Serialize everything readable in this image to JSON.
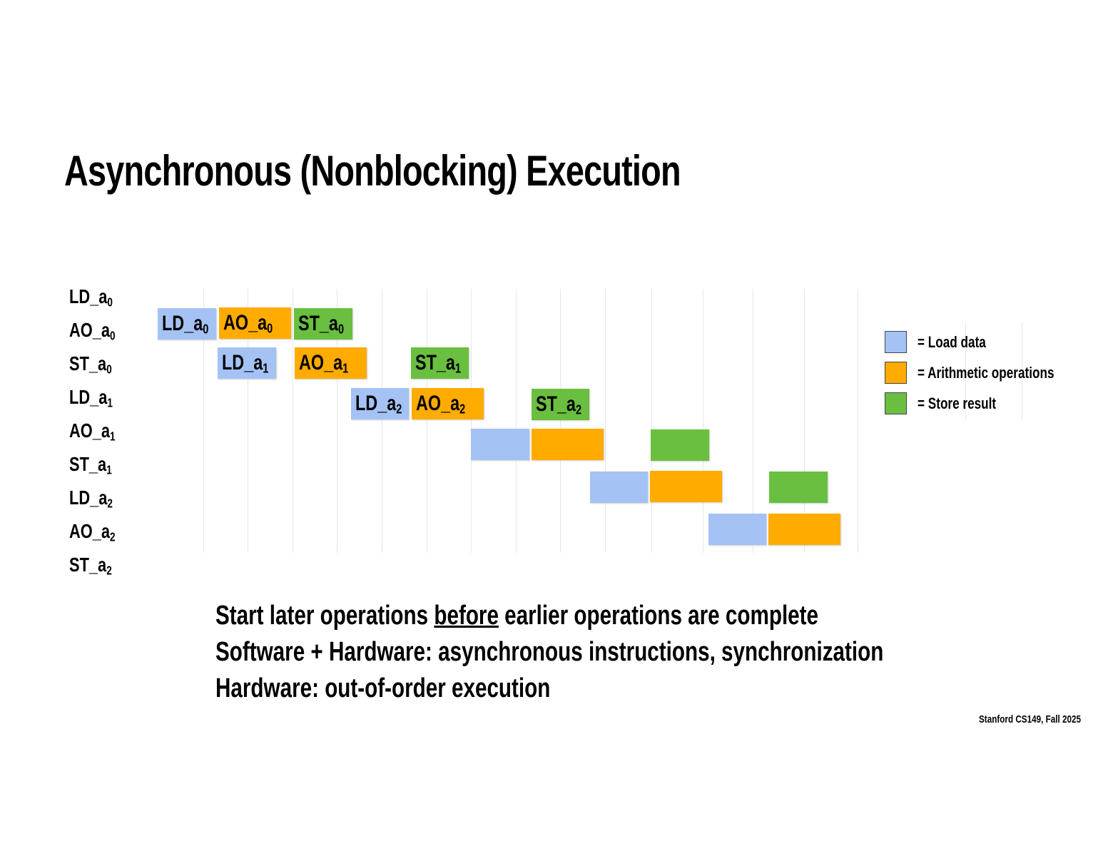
{
  "title": "Asynchronous (Nonblocking) Execution",
  "colors": {
    "load": "#a4c2f4",
    "arith": "#ffab00",
    "store": "#6abf40"
  },
  "row_labels": [
    {
      "base": "LD_a",
      "sub": "0"
    },
    {
      "base": "AO_a",
      "sub": "0"
    },
    {
      "base": "ST_a",
      "sub": "0"
    },
    {
      "base": "LD_a",
      "sub": "1"
    },
    {
      "base": "AO_a",
      "sub": "1"
    },
    {
      "base": "ST_a",
      "sub": "1"
    },
    {
      "base": "LD_a",
      "sub": "2"
    },
    {
      "base": "AO_a",
      "sub": "2"
    },
    {
      "base": "ST_a",
      "sub": "2"
    }
  ],
  "blocks": [
    {
      "type": "load",
      "base": "LD_a",
      "sub": "0"
    },
    {
      "type": "arith",
      "base": "AO_a",
      "sub": "0"
    },
    {
      "type": "store",
      "base": "ST_a",
      "sub": "0"
    },
    {
      "type": "load",
      "base": "LD_a",
      "sub": "1"
    },
    {
      "type": "arith",
      "base": "AO_a",
      "sub": "1"
    },
    {
      "type": "store",
      "base": "ST_a",
      "sub": "1"
    },
    {
      "type": "load",
      "base": "LD_a",
      "sub": "2"
    },
    {
      "type": "arith",
      "base": "AO_a",
      "sub": "2"
    },
    {
      "type": "store",
      "base": "ST_a",
      "sub": "2"
    },
    {
      "type": "load"
    },
    {
      "type": "arith"
    },
    {
      "type": "store"
    },
    {
      "type": "load"
    },
    {
      "type": "arith"
    },
    {
      "type": "store"
    },
    {
      "type": "load"
    },
    {
      "type": "arith"
    }
  ],
  "legend": [
    {
      "type": "load",
      "label": "= Load data"
    },
    {
      "type": "arith",
      "label": "=  Arithmetic operations"
    },
    {
      "type": "store",
      "label": "= Store result"
    }
  ],
  "bullets": {
    "line1": {
      "pre": "Start later operations ",
      "emph": "before",
      "post": " earlier operations are complete"
    },
    "line2": "Software + Hardware: asynchronous  instructions, synchronization",
    "line3": "Hardware: out-of-order execution"
  },
  "footer": "Stanford CS149, Fall 2025"
}
